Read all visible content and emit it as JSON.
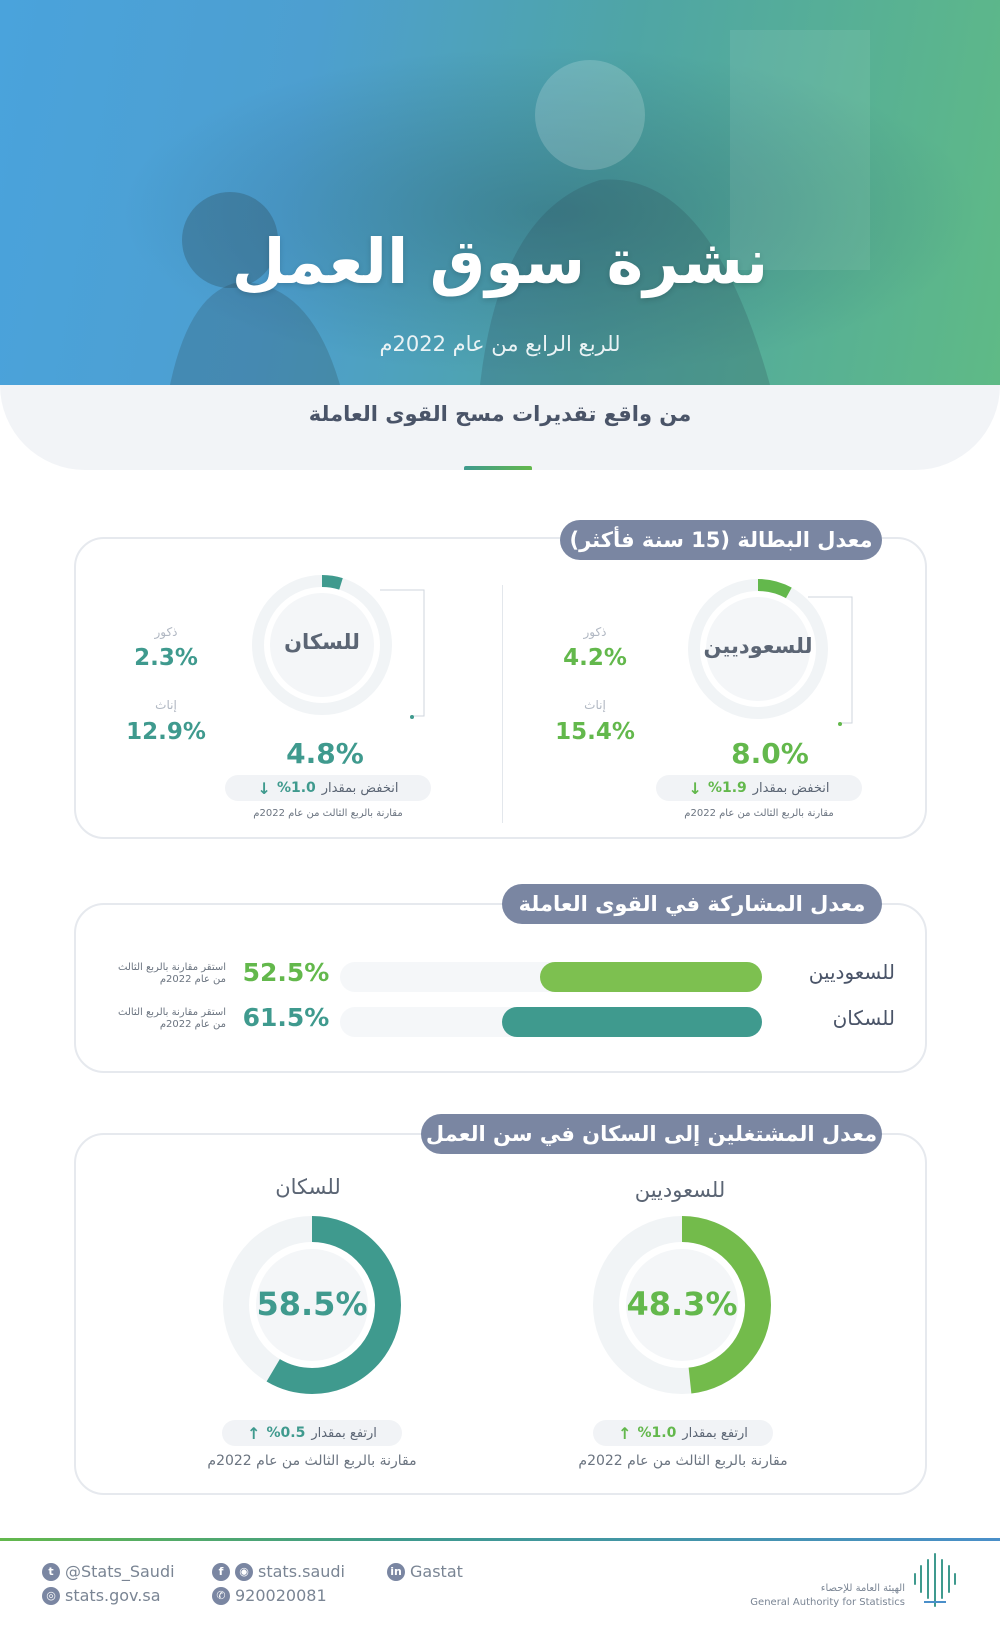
{
  "header": {
    "title": "نشرة سوق العمل",
    "subtitle": "للربع الرابع من عام 2022م",
    "source_line": "من واقع تقديرات مسح القوى العاملة"
  },
  "unemployment": {
    "title": "معدل البطالة (15 سنة فأكثر)",
    "saudis": {
      "label": "للسعوديين",
      "rate": "8.0%",
      "rate_value": 8.0,
      "males_label": "ذكور",
      "males": "4.2%",
      "females_label": "إناث",
      "females": "15.4%",
      "change_text": "انخفض بمقدار",
      "change_value": "%1.9",
      "comparison": "مقارنة بالربع الثالث من عام 2022م"
    },
    "population": {
      "label": "للسكان",
      "rate": "4.8%",
      "rate_value": 4.8,
      "males_label": "ذكور",
      "males": "2.3%",
      "females_label": "إناث",
      "females": "12.9%",
      "change_text": "انخفض بمقدار",
      "change_value": "%1.0",
      "comparison": "مقارنة بالربع الثالث من عام 2022م"
    }
  },
  "participation": {
    "title": "معدل المشاركة في القوى العاملة",
    "rows": [
      {
        "label": "للسعوديين",
        "value": "52.5%",
        "value_num": 52.5,
        "note_line1": "استقر مقارنة بالربع الثالث",
        "note_line2": "من عام 2022م"
      },
      {
        "label": "للسكان",
        "value": "61.5%",
        "value_num": 61.5,
        "note_line1": "استقر مقارنة بالربع الثالث",
        "note_line2": "من عام 2022م"
      }
    ]
  },
  "employment_ratio": {
    "title": "معدل المشتغلين إلى السكان في سن العمل",
    "saudis": {
      "label": "للسعوديين",
      "rate": "48.3%",
      "rate_value": 48.3,
      "change_text": "ارتفع بمقدار",
      "change_value": "%1.0",
      "comparison": "مقارنة بالربع الثالث من عام 2022م"
    },
    "population": {
      "label": "للسكان",
      "rate": "58.5%",
      "rate_value": 58.5,
      "change_text": "ارتفع بمقدار",
      "change_value": "%0.5",
      "comparison": "مقارنة بالربع الثالث من عام 2022م"
    }
  },
  "footer": {
    "twitter": "@Stats_Saudi",
    "website": "stats.gov.sa",
    "social": "stats.saudi",
    "phone": "920020081",
    "linkedin": "Gastat",
    "org_ar": "الهيئة العامة للإحصاء",
    "org_en": "General Authority for Statistics"
  },
  "colors": {
    "teal": "#3f9a8e",
    "green": "#63b84c",
    "pill": "#7a86a2"
  }
}
